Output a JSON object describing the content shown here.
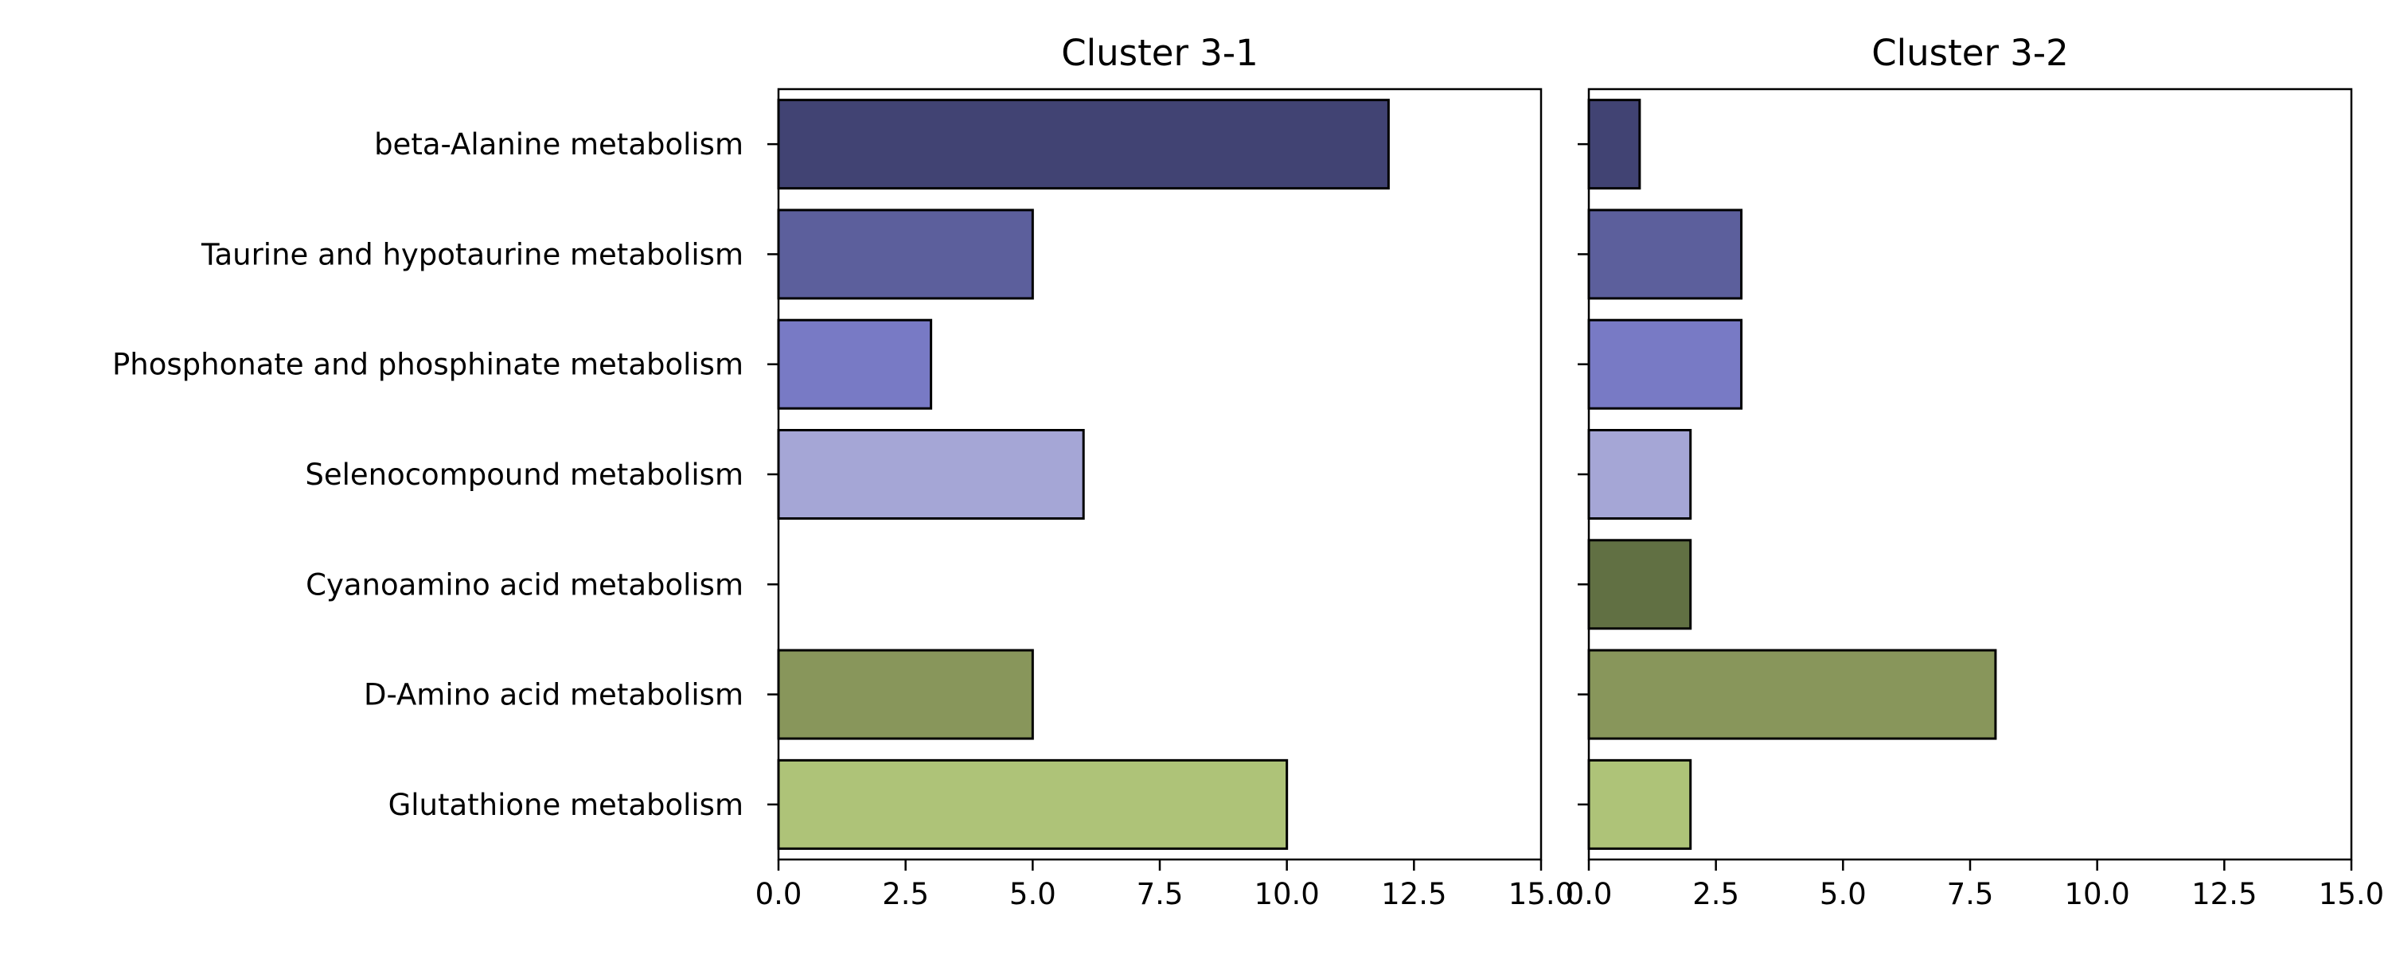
{
  "chart_data": [
    {
      "type": "bar",
      "orientation": "horizontal",
      "title": "Cluster 3-1",
      "xlabel": "",
      "ylabel": "",
      "xlim": [
        0,
        15
      ],
      "xticks": [
        "0.0",
        "2.5",
        "5.0",
        "7.5",
        "10.0",
        "12.5",
        "15.0"
      ],
      "grid": false,
      "categories": [
        "beta-Alanine metabolism",
        "Taurine and hypotaurine metabolism",
        "Phosphonate and phosphinate metabolism",
        "Selenocompound metabolism",
        "Cyanoamino acid metabolism",
        "D-Amino acid metabolism",
        "Glutathione metabolism"
      ],
      "values": [
        12,
        5,
        3,
        6,
        0,
        5,
        10
      ],
      "colors": [
        "#414373",
        "#5c5f9c",
        "#787ac5",
        "#a5a6d6",
        "#617043",
        "#88965b",
        "#aec378"
      ]
    },
    {
      "type": "bar",
      "orientation": "horizontal",
      "title": "Cluster 3-2",
      "xlabel": "",
      "ylabel": "",
      "xlim": [
        0,
        15
      ],
      "xticks": [
        "0.0",
        "2.5",
        "5.0",
        "7.5",
        "10.0",
        "12.5",
        "15.0"
      ],
      "grid": false,
      "categories": [
        "beta-Alanine metabolism",
        "Taurine and hypotaurine metabolism",
        "Phosphonate and phosphinate metabolism",
        "Selenocompound metabolism",
        "Cyanoamino acid metabolism",
        "D-Amino acid metabolism",
        "Glutathione metabolism"
      ],
      "values": [
        1,
        3,
        3,
        2,
        2,
        8,
        2
      ],
      "colors": [
        "#414373",
        "#5c5f9c",
        "#787ac5",
        "#a5a6d6",
        "#617043",
        "#88965b",
        "#aec378"
      ]
    }
  ]
}
